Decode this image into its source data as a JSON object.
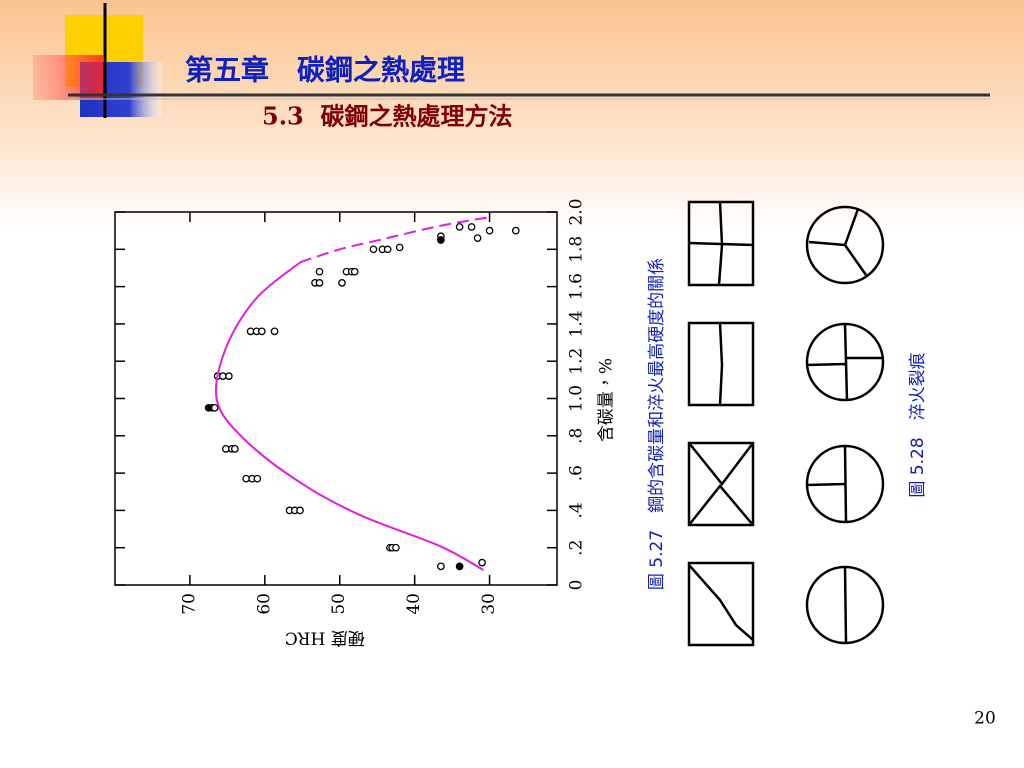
{
  "header": {
    "title": "第五章　碳鋼之熱處理",
    "subtitle": "5.3  碳鋼之熱處理方法"
  },
  "chart_data": {
    "type": "scatter",
    "xlabel": "含碳量，%",
    "ylabel": "硬度 HRC",
    "xlim": [
      0,
      2
    ],
    "ylim": [
      21,
      80
    ],
    "xticks": [
      0,
      {
        "value": 0.2,
        "label": ".2"
      },
      {
        "value": 0.4,
        "label": ".4"
      },
      {
        "value": 0.6,
        "label": ".6"
      },
      {
        "value": 0.8,
        "label": ".8"
      },
      {
        "value": 1.0,
        "label": "1.0"
      },
      1.2,
      1.4,
      1.6,
      1.8,
      {
        "value": 2.0,
        "label": "2.0"
      }
    ],
    "yticks": [
      70,
      60,
      50,
      40,
      30
    ],
    "series": [
      {
        "mode": "open",
        "color": "#000000",
        "x": [
          0.12,
          0.1,
          0.2,
          0.2,
          0.2,
          0.4,
          0.4,
          0.4,
          0.57,
          0.57,
          0.57,
          0.73,
          0.73,
          0.73,
          0.95,
          0.95,
          1.12,
          1.12,
          1.12,
          1.36,
          1.36,
          1.36,
          1.36,
          1.62,
          1.62,
          1.62,
          1.68,
          1.68,
          1.68,
          1.68,
          1.8,
          1.8,
          1.8,
          1.81,
          1.87,
          1.86,
          1.92,
          1.92,
          1.9,
          1.9
        ],
        "values": [
          31,
          36.5,
          43.3,
          43,
          42.5,
          56.7,
          56,
          55.3,
          62.5,
          61.7,
          61,
          65.2,
          64.4,
          64,
          67,
          66.7,
          66.3,
          65.6,
          64.8,
          61.9,
          61.1,
          60.4,
          58.7,
          53.3,
          52.7,
          49.7,
          52.7,
          49.1,
          48.4,
          48,
          45.5,
          44.3,
          43.6,
          42,
          36.5,
          31.6,
          34,
          32.4,
          30,
          26.5
        ]
      },
      {
        "mode": "filled",
        "color": "#000000",
        "x": [
          0.1,
          0.95,
          1.85
        ],
        "values": [
          34,
          67.5,
          36.5
        ]
      },
      {
        "mode": "line",
        "color": "#e020e0",
        "x": [
          0.08,
          0.21,
          0.375,
          0.55,
          0.78,
          0.99,
          1.26,
          1.53,
          1.73
        ],
        "values": [
          30.8,
          36.7,
          47.3,
          55.3,
          62.7,
          66.4,
          65.3,
          61.3,
          55.3
        ]
      },
      {
        "mode": "dashed",
        "color": "#e020e0",
        "x": [
          1.73,
          1.8,
          1.85,
          1.925,
          1.97
        ],
        "values": [
          55.3,
          50,
          44.7,
          36.7,
          30.3
        ]
      }
    ]
  },
  "figures": [
    {
      "caption": "圖 5.27　鋼的含碳量和淬火最高硬度的關係"
    },
    {
      "caption": "圖 5.28　淬火裂痕"
    }
  ],
  "page_number": "20"
}
